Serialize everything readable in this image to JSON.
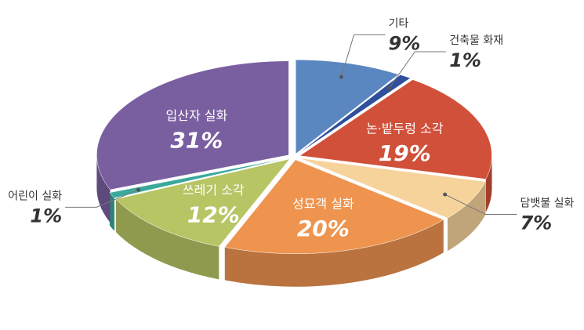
{
  "chart_data": {
    "type": "pie",
    "categories": [
      "기타",
      "건축물 화재",
      "논·밭두렁 소각",
      "담뱃불 실화",
      "성묘객 실화",
      "쓰레기 소각",
      "어린이 실화",
      "입산자 실화"
    ],
    "values": [
      9,
      1,
      19,
      7,
      20,
      12,
      1,
      31
    ],
    "value_labels": [
      "9%",
      "1%",
      "19%",
      "7%",
      "20%",
      "12%",
      "1%",
      "31%"
    ],
    "colors": [
      "#5b87c0",
      "#2f4f9c",
      "#d0503a",
      "#f7d39c",
      "#ee944f",
      "#b8c565",
      "#3aa99b",
      "#7a5fa0"
    ]
  }
}
